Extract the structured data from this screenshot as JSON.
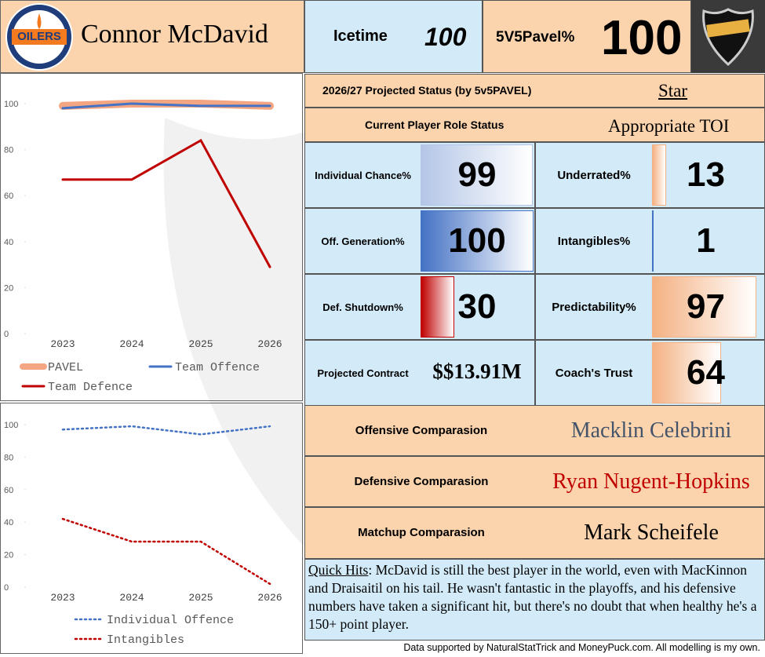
{
  "header": {
    "logo_text": "OILERS",
    "player": "Connor McDavid"
  },
  "icetime": {
    "label": "Icetime",
    "value": 100
  },
  "pavel": {
    "label": "5V5Pavel%",
    "value": 100
  },
  "projected_status": {
    "label": "2026/27 Projected Status (by 5v5PAVEL)",
    "value": "Star"
  },
  "role_status": {
    "label": "Current Player Role Status",
    "value": "Appropriate TOI"
  },
  "metrics": [
    {
      "label": "Individual Chance%",
      "value": 99,
      "color": "#b4c6e7"
    },
    {
      "label": "Underrated%",
      "value": 13,
      "color": "#f4b183"
    },
    {
      "label": "Off. Generation%",
      "value": 100,
      "color": "#4472c4"
    },
    {
      "label": "Intangibles%",
      "value": 1,
      "color": "#4472c4"
    },
    {
      "label": "Def. Shutdown%",
      "value": 30,
      "color": "#c00000"
    },
    {
      "label": "Predictability%",
      "value": 97,
      "color": "#f4b183"
    },
    {
      "label": "Projected Contract",
      "value": "$$13.91M"
    },
    {
      "label": "Coach's Trust",
      "value": 64,
      "color": "#f4b183"
    }
  ],
  "comparisons": [
    {
      "label": "Offensive Comparasion",
      "value": "Macklin Celebrini",
      "color": "#44546a"
    },
    {
      "label": "Defensive Comparasion",
      "value": "Ryan Nugent-Hopkins",
      "color": "#c00000"
    },
    {
      "label": "Matchup Comparasion",
      "value": "Mark Scheifele",
      "color": "#000000"
    }
  ],
  "quick_hits": {
    "label": "Quick Hits",
    "text": ": McDavid is still the best player in the world, even with MacKinnon and Draisaitil on his tail. He wasn't fantastic in the playoffs, and his defensive numbers have taken a significant hit, but there's no doubt that when healthy he's a 150+ point player."
  },
  "footer": "Data supported by NaturalStatTrick and MoneyPuck.com. All modelling is my own.",
  "charts": [
    {
      "type": "line",
      "categories": [
        "2023",
        "2024",
        "2025",
        "2026"
      ],
      "ylim": [
        0,
        100
      ],
      "yticks": [
        0,
        20,
        40,
        60,
        80,
        100
      ],
      "series": [
        {
          "name": "PAVEL",
          "color": "#f4a582",
          "values": [
            99,
            100,
            100,
            99
          ]
        },
        {
          "name": "Team Offence",
          "color": "#4472c4",
          "values": [
            98,
            100,
            99,
            99
          ]
        },
        {
          "name": "Team Defence",
          "color": "#c00000",
          "values": [
            67,
            67,
            84,
            29
          ]
        }
      ]
    },
    {
      "type": "line",
      "categories": [
        "2023",
        "2024",
        "2025",
        "2026"
      ],
      "ylim": [
        0,
        100
      ],
      "yticks": [
        0,
        20,
        40,
        60,
        80,
        100
      ],
      "series": [
        {
          "name": "Individual Offence",
          "color": "#4472c4",
          "style": "dotted",
          "values": [
            97,
            99,
            94,
            99
          ]
        },
        {
          "name": "Intangibles",
          "color": "#c00000",
          "style": "dotted",
          "values": [
            42,
            28,
            28,
            2
          ]
        }
      ]
    }
  ]
}
